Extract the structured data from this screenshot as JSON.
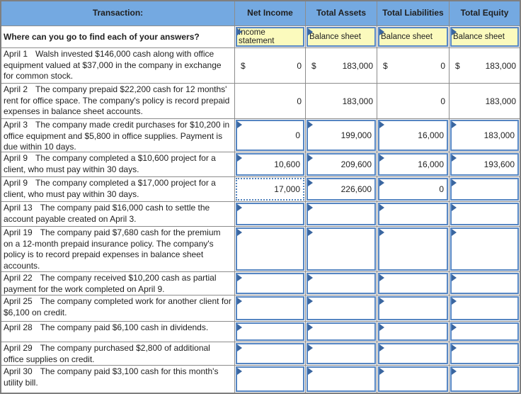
{
  "colors": {
    "header_blue": "#74a9e1",
    "source_yellow": "#fbfabd",
    "input_border_blue": "#5585c2",
    "selected_border_blue": "#4f81bd",
    "triangle_blue": "#3a66a0",
    "grid_gray": "#8c8c8c",
    "outer_border_gray": "#7f7f7f",
    "text_dark": "#1f1f1f"
  },
  "header": {
    "columns": [
      "Transaction:",
      "Net Income",
      "Total Assets",
      "Total Liabilities",
      "Total Equity"
    ]
  },
  "answers_row": {
    "question": "Where can you go to find each of your answers?",
    "sources": [
      "Income statement",
      "Balance sheet",
      "Balance sheet",
      "Balance sheet"
    ]
  },
  "rows": [
    {
      "date": "April 1",
      "desc": "Walsh invested $146,000 cash along with office equipment valued at $37,000 in the company in exchange for common stock.",
      "cells": [
        {
          "text": "0",
          "style": "plain",
          "dollar": "$"
        },
        {
          "text": "183,000",
          "style": "plain",
          "dollar": "$"
        },
        {
          "text": "0",
          "style": "plain",
          "dollar": "$"
        },
        {
          "text": "183,000",
          "style": "plain",
          "dollar": "$"
        }
      ]
    },
    {
      "date": "April 2",
      "desc": "The company prepaid $22,200 cash for 12 months' rent for office space. The company's policy is record prepaid expenses in balance sheet accounts.",
      "cells": [
        {
          "text": "0",
          "style": "plain"
        },
        {
          "text": "183,000",
          "style": "plain"
        },
        {
          "text": "0",
          "style": "plain"
        },
        {
          "text": "183,000",
          "style": "plain"
        }
      ]
    },
    {
      "date": "April 3",
      "desc": "The company made credit purchases for $10,200 in office equipment and $5,800 in office supplies. Payment is due within 10 days.",
      "cells": [
        {
          "text": "0",
          "style": "input"
        },
        {
          "text": "199,000",
          "style": "input"
        },
        {
          "text": "16,000",
          "style": "input"
        },
        {
          "text": "183,000",
          "style": "input"
        }
      ]
    },
    {
      "date": "April 9",
      "desc": "The company completed a $10,600 project for a client, who must pay within 30 days.",
      "cells": [
        {
          "text": "10,600",
          "style": "input"
        },
        {
          "text": "209,600",
          "style": "input"
        },
        {
          "text": "16,000",
          "style": "input"
        },
        {
          "text": "193,600",
          "style": "input"
        }
      ]
    },
    {
      "date": "April 9",
      "desc": "The company completed a $17,000 project for a client, who must pay within 30 days.",
      "cells": [
        {
          "text": "17,000",
          "style": "selected"
        },
        {
          "text": "226,600",
          "style": "input"
        },
        {
          "text": "0",
          "style": "input"
        },
        {
          "text": "",
          "style": "input"
        }
      ]
    },
    {
      "date": "April 13",
      "desc": "The company paid $16,000 cash to settle the account payable created on April 3.",
      "cells": [
        {
          "text": "",
          "style": "input"
        },
        {
          "text": "",
          "style": "input"
        },
        {
          "text": "",
          "style": "input"
        },
        {
          "text": "",
          "style": "input"
        }
      ]
    },
    {
      "date": "April 19",
      "desc": "The company paid $7,680 cash for the premium on a 12-month prepaid insurance policy. The company's policy is to record prepaid expenses in balance sheet accounts.",
      "cells": [
        {
          "text": "",
          "style": "input"
        },
        {
          "text": "",
          "style": "input"
        },
        {
          "text": "",
          "style": "input"
        },
        {
          "text": "",
          "style": "input"
        }
      ]
    },
    {
      "date": "April 22",
      "desc": "The company received $10,200 cash as partial payment for the work completed on April 9.",
      "cells": [
        {
          "text": "",
          "style": "input"
        },
        {
          "text": "",
          "style": "input"
        },
        {
          "text": "",
          "style": "input"
        },
        {
          "text": "",
          "style": "input"
        }
      ]
    },
    {
      "date": "April 25",
      "desc": "The company completed work for another client for $6,100 on credit.",
      "cells": [
        {
          "text": "",
          "style": "input"
        },
        {
          "text": "",
          "style": "input"
        },
        {
          "text": "",
          "style": "input"
        },
        {
          "text": "",
          "style": "input"
        }
      ]
    },
    {
      "date": "April 28",
      "desc": "The company paid $6,100 cash in dividends.",
      "cells": [
        {
          "text": "",
          "style": "input"
        },
        {
          "text": "",
          "style": "input"
        },
        {
          "text": "",
          "style": "input"
        },
        {
          "text": "",
          "style": "input"
        }
      ]
    },
    {
      "date": "April 29",
      "desc": "The company purchased $2,800 of additional office supplies on credit.",
      "cells": [
        {
          "text": "",
          "style": "input"
        },
        {
          "text": "",
          "style": "input"
        },
        {
          "text": "",
          "style": "input"
        },
        {
          "text": "",
          "style": "input"
        }
      ]
    },
    {
      "date": "April 30",
      "desc": "The company paid $3,100 cash for this month's utility bill.",
      "cells": [
        {
          "text": "",
          "style": "input"
        },
        {
          "text": "",
          "style": "input"
        },
        {
          "text": "",
          "style": "input"
        },
        {
          "text": "",
          "style": "input"
        }
      ]
    }
  ]
}
